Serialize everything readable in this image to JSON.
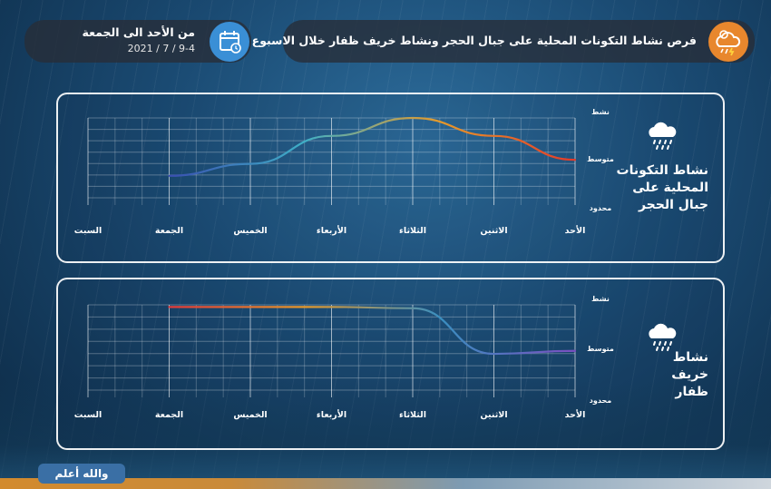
{
  "header": {
    "title": "فرص نشاط التكونات المحلية على جبال الحجر ونشاط خريف ظفار خلال الاسبوع الحالي",
    "date_range": "من الأحد الى الجمعة",
    "date": "2021 / 7 / 9-4",
    "title_icon": "cloud-storm-icon",
    "calendar_icon": "calendar-icon"
  },
  "footer": {
    "label": "والله أعلم"
  },
  "chart_data": [
    {
      "type": "line",
      "title": "نشاط التكونات المحلية على جبال الحجر",
      "categories": [
        "السبت",
        "الجمعة",
        "الخميس",
        "الأربعاء",
        "الثلاثاء",
        "الاثنين",
        "الأحد"
      ],
      "y_levels": [
        "محدود",
        "متوسط",
        "نشط"
      ],
      "ylim": [
        0,
        2
      ],
      "series": [
        {
          "values": [
            null,
            0.55,
            0.85,
            1.55,
            2.0,
            1.55,
            0.95
          ]
        }
      ],
      "gradient": [
        "#3a4fb0",
        "#3fb0c7",
        "#e79a2a",
        "#e33a2a"
      ],
      "grid": true
    },
    {
      "type": "line",
      "title": "نشاط خريف ظفار",
      "categories": [
        "السبت",
        "الجمعة",
        "الخميس",
        "الأربعاء",
        "الثلاثاء",
        "الاثنين",
        "الأحد"
      ],
      "y_levels": [
        "محدود",
        "متوسط",
        "نشط"
      ],
      "ylim": [
        0,
        2
      ],
      "series": [
        {
          "values": [
            null,
            1.95,
            1.95,
            1.95,
            1.92,
            0.85,
            0.92
          ]
        }
      ],
      "gradient": [
        "#e33a3a",
        "#e79a2a",
        "#3a8fc0",
        "#7a4fc0"
      ],
      "grid": true
    }
  ]
}
